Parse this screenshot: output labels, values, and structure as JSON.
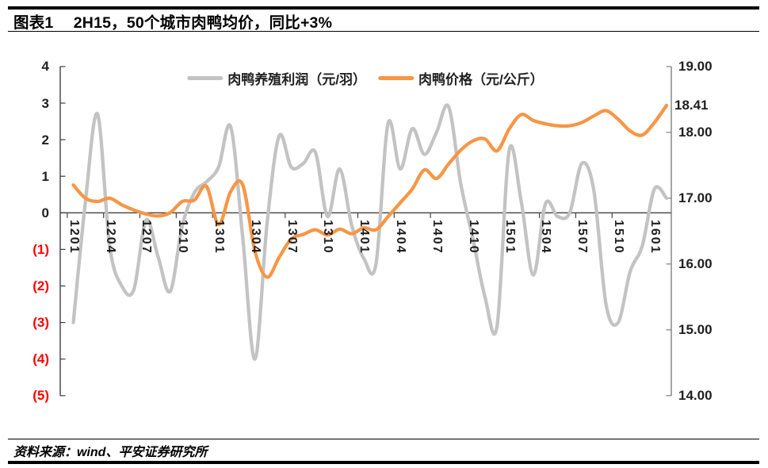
{
  "header": {
    "title": "图表1　 2H15，50个城市肉鸭均价，同比+3%"
  },
  "footer": {
    "source": "资料来源：wind、平安证券研究所"
  },
  "chart_data": {
    "type": "line",
    "smooth_lines": true,
    "gridlines": false,
    "legend_position": "top",
    "x": [
      "1201",
      "1202",
      "1203",
      "1204",
      "1205",
      "1206",
      "1207",
      "1208",
      "1209",
      "1210",
      "1211",
      "1212",
      "1301",
      "1302",
      "1303",
      "1304",
      "1305",
      "1306",
      "1307",
      "1308",
      "1309",
      "1310",
      "1311",
      "1312",
      "1401",
      "1402",
      "1403",
      "1404",
      "1405",
      "1406",
      "1407",
      "1408",
      "1409",
      "1410",
      "1411",
      "1412",
      "1501",
      "1502",
      "1503",
      "1504",
      "1505",
      "1506",
      "1507",
      "1508",
      "1509",
      "1510",
      "1511",
      "1512",
      "1601",
      "1602"
    ],
    "x_axis_labels_shown": [
      "1201",
      "1204",
      "1207",
      "1210",
      "1301",
      "1304",
      "1307",
      "1310",
      "1401",
      "1404",
      "1407",
      "1410",
      "1501",
      "1504",
      "1507",
      "1510",
      "1601"
    ],
    "series": [
      {
        "name": "肉鸭养殖利润（元/羽）",
        "unit": "元/羽",
        "axis": "left",
        "color": "#C3C3C3",
        "values": [
          -3.0,
          0.3,
          2.7,
          -0.9,
          -2.0,
          -2.1,
          -0.2,
          -1.2,
          -2.15,
          -0.35,
          0.55,
          0.85,
          1.25,
          2.35,
          -0.7,
          -4.0,
          -0.3,
          2.1,
          1.25,
          1.35,
          1.65,
          -0.1,
          1.2,
          -0.35,
          -1.25,
          -1.4,
          2.45,
          1.2,
          2.3,
          1.6,
          2.2,
          2.9,
          0.8,
          -0.7,
          -2.3,
          -3.1,
          1.7,
          0.3,
          -1.7,
          0.25,
          -0.1,
          0.0,
          1.35,
          0.6,
          -2.5,
          -3.0,
          -1.6,
          -0.9,
          0.65,
          0.4
        ]
      },
      {
        "name": "肉鸭价格（元/公斤）",
        "unit": "元/公斤",
        "axis": "right",
        "color": "#F79646",
        "values": [
          17.2,
          17.0,
          16.95,
          17.0,
          16.9,
          16.82,
          16.76,
          16.73,
          16.78,
          16.95,
          16.97,
          17.18,
          16.6,
          17.1,
          17.2,
          16.2,
          15.8,
          16.1,
          16.38,
          16.45,
          16.52,
          16.44,
          16.53,
          16.46,
          16.55,
          16.52,
          16.72,
          16.93,
          17.14,
          17.43,
          17.3,
          17.52,
          17.73,
          17.87,
          17.9,
          17.72,
          18.05,
          18.27,
          18.18,
          18.13,
          18.1,
          18.1,
          18.15,
          18.25,
          18.33,
          18.2,
          18.02,
          17.96,
          18.15,
          18.41
        ]
      }
    ],
    "left_axis": {
      "tick_labels": [
        "4",
        "3",
        "2",
        "1",
        "0",
        "(1)",
        "(2)",
        "(3)",
        "(4)",
        "(5)"
      ],
      "tick_values": [
        4,
        3,
        2,
        1,
        0,
        -1,
        -2,
        -3,
        -4,
        -5
      ],
      "min": -5,
      "max": 4,
      "positive_color": "#1F1F1F",
      "negative_color": "#FF0000"
    },
    "right_axis": {
      "tick_labels": [
        "19.00",
        "18.00",
        "17.00",
        "16.00",
        "15.00",
        "14.00"
      ],
      "tick_values": [
        19,
        18,
        17,
        16,
        15,
        14
      ],
      "min": 14,
      "max": 19
    },
    "end_label": "18.41",
    "end_label_value": 18.41
  }
}
